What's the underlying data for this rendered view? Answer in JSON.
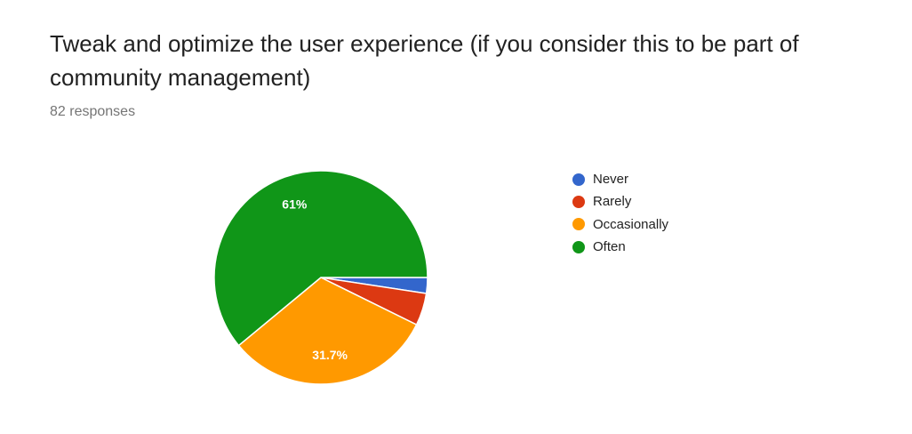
{
  "header": {
    "title": "Tweak and optimize the user experience (if you consider this to be part of community management)",
    "responses": "82 responses"
  },
  "chart_data": {
    "type": "pie",
    "title": "Tweak and optimize the user experience (if you consider this to be part of community management)",
    "categories": [
      "Never",
      "Rarely",
      "Occasionally",
      "Often"
    ],
    "values": [
      2.4,
      4.9,
      31.7,
      61
    ],
    "value_labels": [
      "",
      "",
      "31.7%",
      "61%"
    ],
    "colors": [
      "#3366cc",
      "#dc3912",
      "#ff9900",
      "#109618"
    ],
    "start_angle": "3 o'clock",
    "direction": "clockwise",
    "legend_position": "right"
  }
}
